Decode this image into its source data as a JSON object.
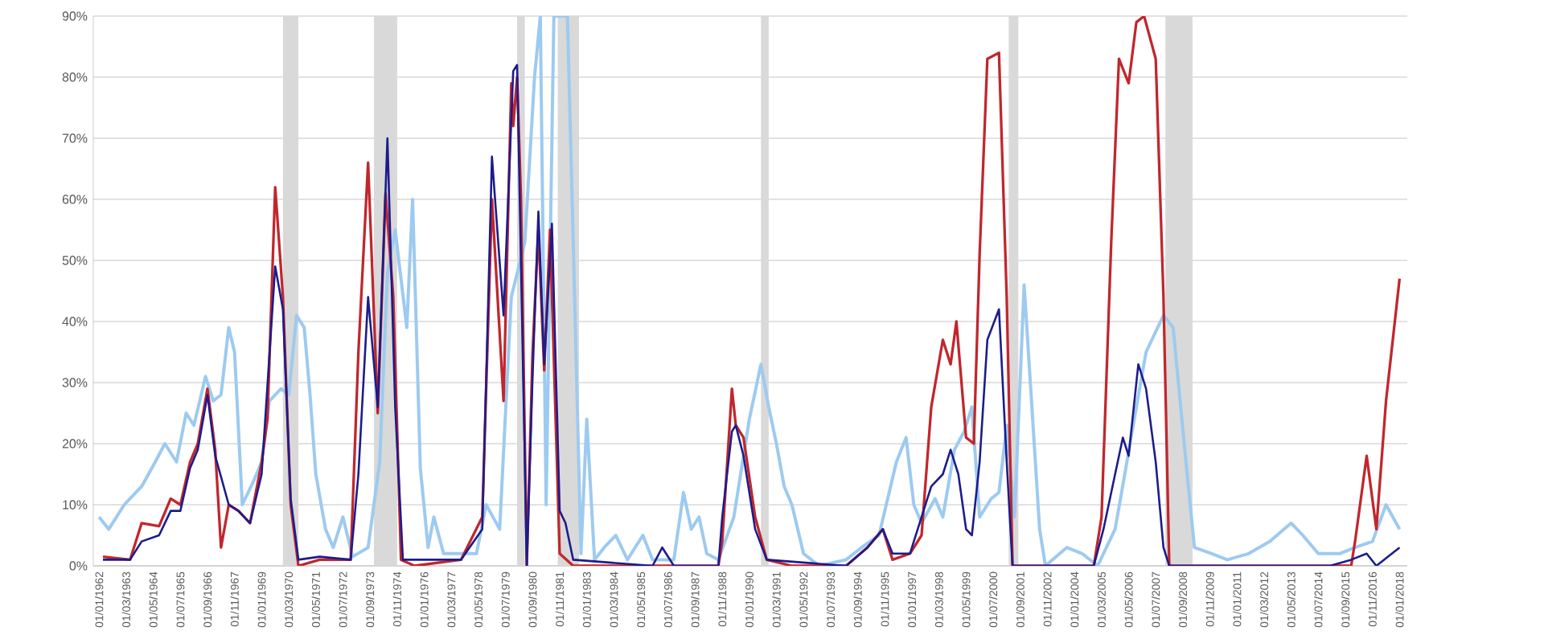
{
  "chart_data": {
    "type": "line",
    "xlim": [
      "1961-10",
      "2018-05"
    ],
    "ylim": [
      0,
      90
    ],
    "yticks": [
      {
        "value": 0,
        "label": "0%"
      },
      {
        "value": 10,
        "label": "10%"
      },
      {
        "value": 20,
        "label": "20%"
      },
      {
        "value": 30,
        "label": "30%"
      },
      {
        "value": 40,
        "label": "40%"
      },
      {
        "value": 50,
        "label": "50%"
      },
      {
        "value": 60,
        "label": "60%"
      },
      {
        "value": 70,
        "label": "70%"
      },
      {
        "value": 80,
        "label": "80%"
      },
      {
        "value": 90,
        "label": "90%"
      }
    ],
    "xticks": [
      {
        "value": "1962-01",
        "label": "01/01/1962"
      },
      {
        "value": "1963-03",
        "label": "01/03/1963"
      },
      {
        "value": "1964-05",
        "label": "01/05/1964"
      },
      {
        "value": "1965-07",
        "label": "01/07/1965"
      },
      {
        "value": "1966-09",
        "label": "01/09/1966"
      },
      {
        "value": "1967-11",
        "label": "01/11/1967"
      },
      {
        "value": "1969-01",
        "label": "01/01/1969"
      },
      {
        "value": "1970-03",
        "label": "01/03/1970"
      },
      {
        "value": "1971-05",
        "label": "01/05/1971"
      },
      {
        "value": "1972-07",
        "label": "01/07/1972"
      },
      {
        "value": "1973-09",
        "label": "01/09/1973"
      },
      {
        "value": "1974-11",
        "label": "01/11/1974"
      },
      {
        "value": "1976-01",
        "label": "01/01/1976"
      },
      {
        "value": "1977-03",
        "label": "01/03/1977"
      },
      {
        "value": "1978-05",
        "label": "01/05/1978"
      },
      {
        "value": "1979-07",
        "label": "01/07/1979"
      },
      {
        "value": "1980-09",
        "label": "01/09/1980"
      },
      {
        "value": "1981-11",
        "label": "01/11/1981"
      },
      {
        "value": "1983-01",
        "label": "01/01/1983"
      },
      {
        "value": "1984-03",
        "label": "01/03/1984"
      },
      {
        "value": "1985-05",
        "label": "01/05/1985"
      },
      {
        "value": "1986-07",
        "label": "01/07/1986"
      },
      {
        "value": "1987-09",
        "label": "01/09/1987"
      },
      {
        "value": "1988-11",
        "label": "01/11/1988"
      },
      {
        "value": "1990-01",
        "label": "01/01/1990"
      },
      {
        "value": "1991-03",
        "label": "01/03/1991"
      },
      {
        "value": "1992-05",
        "label": "01/05/1992"
      },
      {
        "value": "1993-07",
        "label": "01/07/1993"
      },
      {
        "value": "1994-09",
        "label": "01/09/1994"
      },
      {
        "value": "1995-11",
        "label": "01/11/1995"
      },
      {
        "value": "1997-01",
        "label": "01/01/1997"
      },
      {
        "value": "1998-03",
        "label": "01/03/1998"
      },
      {
        "value": "1999-05",
        "label": "01/05/1999"
      },
      {
        "value": "2000-07",
        "label": "01/07/2000"
      },
      {
        "value": "2001-09",
        "label": "01/09/2001"
      },
      {
        "value": "2002-11",
        "label": "01/11/2002"
      },
      {
        "value": "2004-01",
        "label": "01/01/2004"
      },
      {
        "value": "2005-03",
        "label": "01/03/2005"
      },
      {
        "value": "2006-05",
        "label": "01/05/2006"
      },
      {
        "value": "2007-07",
        "label": "01/07/2007"
      },
      {
        "value": "2008-09",
        "label": "01/09/2008"
      },
      {
        "value": "2009-11",
        "label": "01/11/2009"
      },
      {
        "value": "2011-01",
        "label": "01/01/2011"
      },
      {
        "value": "2012-03",
        "label": "01/03/2012"
      },
      {
        "value": "2013-05",
        "label": "01/05/2013"
      },
      {
        "value": "2014-07",
        "label": "01/07/2014"
      },
      {
        "value": "2015-09",
        "label": "01/09/2015"
      },
      {
        "value": "2016-11",
        "label": "01/11/2016"
      },
      {
        "value": "2018-01",
        "label": "01/01/2018"
      }
    ],
    "grid": "y",
    "bands": [
      {
        "axis": "x",
        "from": "1969-12",
        "to": "1970-08",
        "color": "#d9d9d9"
      },
      {
        "axis": "x",
        "from": "1973-11",
        "to": "1974-11",
        "color": "#d9d9d9"
      },
      {
        "axis": "x",
        "from": "1980-01",
        "to": "1980-05",
        "color": "#d9d9d9"
      },
      {
        "axis": "x",
        "from": "1981-10",
        "to": "1982-09",
        "color": "#d9d9d9"
      },
      {
        "axis": "x",
        "from": "1990-07",
        "to": "1990-11",
        "color": "#d9d9d9"
      },
      {
        "axis": "x",
        "from": "2001-03",
        "to": "2001-08",
        "color": "#d9d9d9"
      },
      {
        "axis": "x",
        "from": "2007-12",
        "to": "2009-02",
        "color": "#d9d9d9"
      }
    ],
    "series": [
      {
        "color": "#9dcaf0",
        "x": [
          "1962-01",
          "1962-06",
          "1963-02",
          "1963-11",
          "1964-06",
          "1964-11",
          "1965-05",
          "1965-10",
          "1966-02",
          "1966-08",
          "1966-12",
          "1967-04",
          "1967-08",
          "1967-11",
          "1968-03",
          "1968-09",
          "1969-01",
          "1969-05",
          "1969-11",
          "1970-03",
          "1970-07",
          "1970-11",
          "1971-02",
          "1971-05",
          "1971-10",
          "1972-02",
          "1972-07",
          "1972-12",
          "1973-08",
          "1974-02",
          "1974-06",
          "1974-10",
          "1975-04",
          "1975-07",
          "1975-11",
          "1976-03",
          "1976-06",
          "1976-11",
          "1978-04",
          "1978-09",
          "1979-04",
          "1979-10",
          "1980-05",
          "1980-10",
          "1981-01",
          "1981-04",
          "1981-08",
          "1982-03",
          "1982-06",
          "1982-10",
          "1983-01",
          "1983-05",
          "1983-10",
          "1984-04",
          "1984-10",
          "1985-06",
          "1985-11",
          "1986-10",
          "1987-03",
          "1987-07",
          "1987-11",
          "1988-03",
          "1988-09",
          "1989-05",
          "1990-01",
          "1990-07",
          "1990-11",
          "1991-03",
          "1991-07",
          "1991-11",
          "1992-05",
          "1993-01",
          "1994-03",
          "1994-11",
          "1995-08",
          "1996-05",
          "1996-10",
          "1997-02",
          "1997-06",
          "1998-01",
          "1998-05",
          "1998-11",
          "1999-04",
          "1999-08",
          "1999-12",
          "2000-06",
          "2000-10",
          "2001-02",
          "2001-06",
          "2001-11",
          "2002-03",
          "2002-07",
          "2002-10",
          "2003-09",
          "2004-05",
          "2005-01",
          "2005-10",
          "2006-03",
          "2006-09",
          "2007-02",
          "2007-11",
          "2008-04",
          "2008-10",
          "2009-03",
          "2009-12",
          "2010-08",
          "2011-07",
          "2012-06",
          "2013-05",
          "2013-11",
          "2014-07",
          "2015-06",
          "2016-02",
          "2016-11",
          "2017-06",
          "2018-01"
        ],
        "values": [
          8,
          6,
          10,
          13,
          17,
          20,
          17,
          25,
          23,
          31,
          27,
          28,
          39,
          35,
          10,
          14,
          17,
          27,
          29,
          28,
          41,
          39,
          28,
          15,
          6,
          3,
          8,
          1.5,
          3,
          17,
          48,
          55,
          39,
          60,
          16,
          3,
          8,
          2,
          2,
          10,
          6,
          44,
          53,
          80,
          90,
          10,
          90,
          90,
          53,
          2,
          24,
          1,
          3,
          5,
          1,
          5,
          1,
          1,
          12,
          6,
          8,
          2,
          1,
          8,
          24,
          33,
          26,
          20,
          13,
          10,
          2,
          0,
          1,
          3,
          5,
          17,
          21,
          10,
          7,
          11,
          8,
          19,
          22,
          26,
          8,
          11,
          12,
          23,
          8,
          46,
          26,
          6,
          0,
          3,
          2,
          0,
          6,
          15,
          26,
          35,
          41,
          39,
          19,
          3,
          2,
          1,
          2,
          4,
          7,
          5,
          2,
          2,
          3,
          4,
          10,
          6
        ]
      },
      {
        "color": "#c0272d",
        "x": [
          "1962-03",
          "1963-05",
          "1963-11",
          "1964-08",
          "1965-02",
          "1965-07",
          "1965-12",
          "1966-04",
          "1966-09",
          "1967-01",
          "1967-04",
          "1967-08",
          "1968-01",
          "1968-07",
          "1969-01",
          "1969-04",
          "1969-08",
          "1969-12",
          "1970-04",
          "1970-08",
          "1971-07",
          "1972-11",
          "1973-03",
          "1973-08",
          "1974-01",
          "1974-05",
          "1974-09",
          "1975-01",
          "1975-08",
          "1977-08",
          "1978-07",
          "1978-12",
          "1979-06",
          "1979-10",
          "1979-11",
          "1980-01",
          "1980-03",
          "1980-06",
          "1980-09",
          "1980-12",
          "1981-03",
          "1981-06",
          "1981-11",
          "1982-06",
          "1988-09",
          "1988-11",
          "1989-04",
          "1989-06",
          "1989-10",
          "1990-04",
          "1990-10",
          "1991-11",
          "1994-03",
          "1995-02",
          "1995-10",
          "1996-03",
          "1996-12",
          "1997-06",
          "1997-11",
          "1998-05",
          "1998-09",
          "1998-12",
          "1999-05",
          "1999-09",
          "1999-12",
          "2000-04",
          "2000-10",
          "2001-02",
          "2001-05",
          "2004-11",
          "2005-03",
          "2005-08",
          "2005-12",
          "2006-05",
          "2006-09",
          "2007-01",
          "2007-07",
          "2007-11",
          "2008-02",
          "2015-12",
          "2016-02",
          "2016-08",
          "2017-01",
          "2017-06",
          "2018-01"
        ],
        "values": [
          1.5,
          1,
          7,
          6.5,
          11,
          10,
          17,
          20,
          29,
          19,
          3,
          10,
          9,
          7,
          17,
          24,
          62,
          44,
          10,
          0,
          1,
          1,
          35,
          66,
          25,
          61,
          44,
          1,
          0,
          1,
          8,
          60,
          27,
          79,
          72,
          80,
          60,
          0,
          35,
          55,
          32,
          55,
          2,
          0,
          0,
          4,
          29,
          23,
          21,
          8,
          1,
          0,
          0,
          3,
          6,
          1,
          2,
          5,
          26,
          37,
          33,
          40,
          21,
          20,
          51,
          83,
          84,
          44,
          0,
          0,
          8,
          53,
          83,
          79,
          89,
          90,
          83,
          44,
          0,
          0,
          4,
          18,
          6,
          27,
          47
        ]
      },
      {
        "color": "#1c1c8c",
        "x": [
          "1962-03",
          "1963-05",
          "1963-11",
          "1964-08",
          "1965-02",
          "1965-07",
          "1965-12",
          "1966-04",
          "1966-09",
          "1967-01",
          "1967-08",
          "1968-01",
          "1968-07",
          "1969-01",
          "1969-08",
          "1969-12",
          "1970-04",
          "1970-08",
          "1971-07",
          "1972-11",
          "1973-03",
          "1973-08",
          "1974-01",
          "1974-06",
          "1974-10",
          "1975-02",
          "1977-08",
          "1978-07",
          "1978-12",
          "1979-06",
          "1979-11",
          "1980-01",
          "1980-05",
          "1980-06",
          "1980-09",
          "1980-12",
          "1981-03",
          "1981-07",
          "1981-11",
          "1982-02",
          "1982-06",
          "1985-11",
          "1986-04",
          "1986-10",
          "1988-09",
          "1988-11",
          "1989-04",
          "1989-06",
          "1989-10",
          "1990-04",
          "1990-10",
          "1994-03",
          "1995-02",
          "1995-10",
          "1996-03",
          "1996-12",
          "1997-11",
          "1998-05",
          "1998-09",
          "1999-01",
          "1999-05",
          "1999-08",
          "1999-12",
          "2000-04",
          "2000-10",
          "2001-02",
          "2001-05",
          "2004-11",
          "2005-04",
          "2005-10",
          "2006-02",
          "2006-05",
          "2006-10",
          "2007-02",
          "2007-07",
          "2007-11",
          "2008-02",
          "2015-01",
          "2015-12",
          "2016-08",
          "2017-01",
          "2018-01"
        ],
        "values": [
          1,
          1,
          4,
          5,
          9,
          9,
          16,
          19,
          28,
          18,
          10,
          9,
          7,
          15,
          49,
          42,
          11,
          1,
          1.5,
          1,
          15,
          44,
          26,
          70,
          26,
          1,
          1,
          6,
          67,
          41,
          81,
          82,
          17,
          0,
          31,
          58,
          33,
          56,
          9,
          7,
          1,
          0,
          3,
          0,
          0,
          8,
          22,
          23,
          18,
          6,
          1,
          0,
          3,
          6,
          2,
          2,
          13,
          15,
          19,
          15,
          6,
          5,
          17,
          37,
          42,
          17,
          0,
          0,
          6,
          15,
          21,
          18,
          33,
          29,
          17,
          3,
          0,
          0,
          1,
          2,
          0,
          3
        ]
      }
    ]
  }
}
